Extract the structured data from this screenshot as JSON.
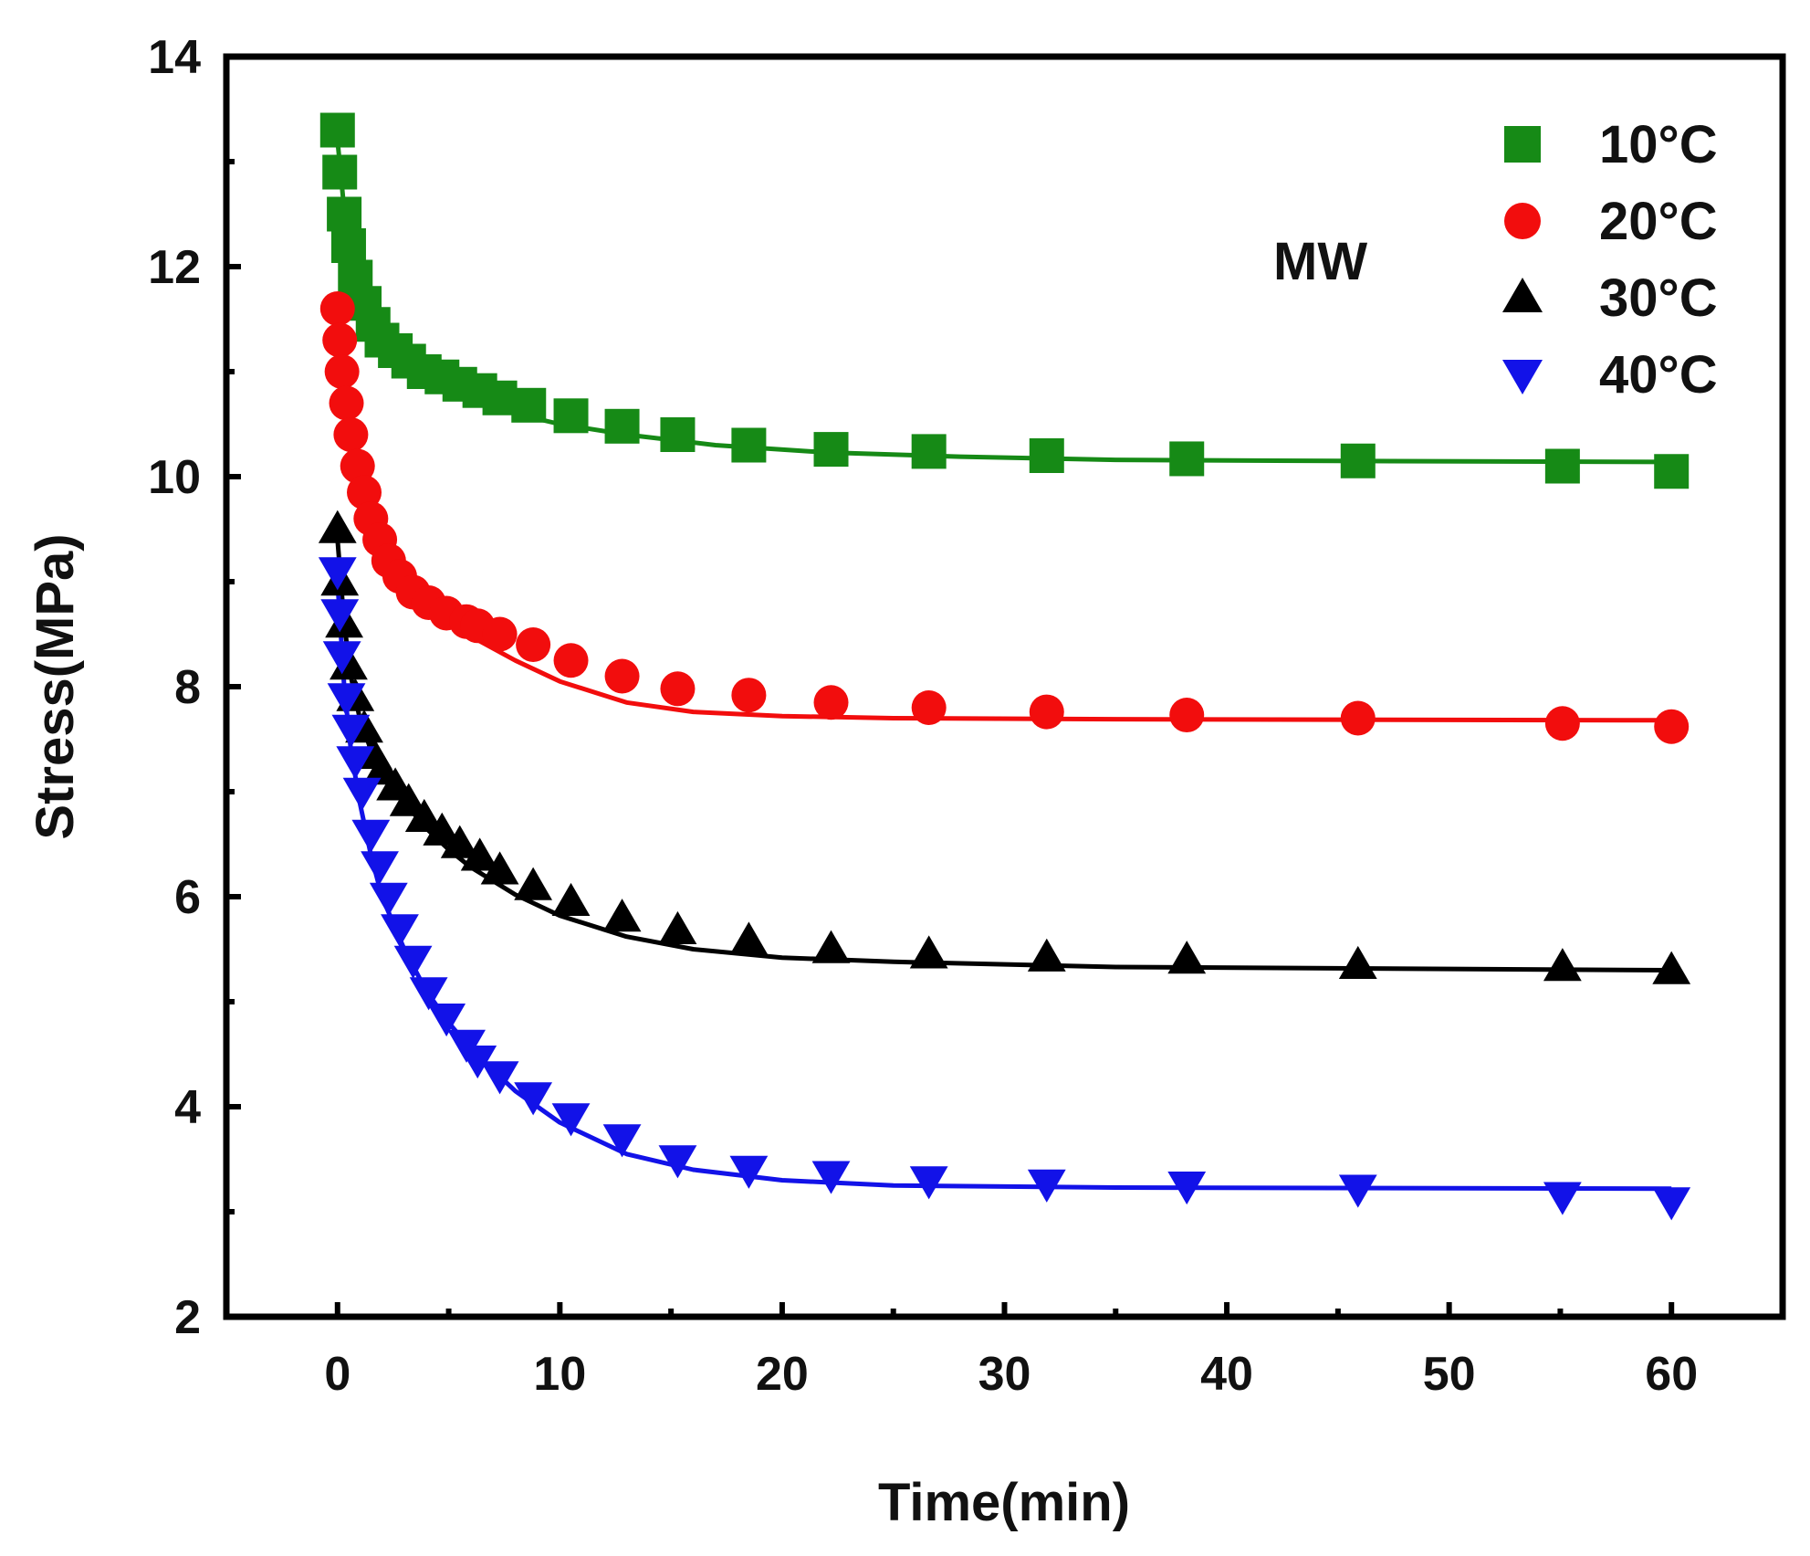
{
  "chart_data": {
    "type": "scatter",
    "title": "",
    "xlabel": "Time(min)",
    "ylabel": "Stress(MPa)",
    "xlim": [
      -5,
      65
    ],
    "ylim": [
      2,
      14
    ],
    "xticks": [
      0,
      10,
      20,
      30,
      40,
      50,
      60
    ],
    "yticks": [
      2,
      4,
      6,
      8,
      10,
      12,
      14
    ],
    "grid": false,
    "legend_position": "top-right",
    "annotation": "MW",
    "series": [
      {
        "name": "10°C",
        "marker": "square",
        "color": "#168a16",
        "points": [
          [
            0,
            13.3
          ],
          [
            0.1,
            12.9
          ],
          [
            0.3,
            12.5
          ],
          [
            0.5,
            12.2
          ],
          [
            0.8,
            11.9
          ],
          [
            1.2,
            11.65
          ],
          [
            1.6,
            11.45
          ],
          [
            2.0,
            11.3
          ],
          [
            2.6,
            11.2
          ],
          [
            3.2,
            11.1
          ],
          [
            3.9,
            11.0
          ],
          [
            4.7,
            10.95
          ],
          [
            5.5,
            10.88
          ],
          [
            6.4,
            10.82
          ],
          [
            7.3,
            10.75
          ],
          [
            8.6,
            10.68
          ],
          [
            10.5,
            10.58
          ],
          [
            12.8,
            10.48
          ],
          [
            15.3,
            10.4
          ],
          [
            18.5,
            10.3
          ],
          [
            22.2,
            10.26
          ],
          [
            26.6,
            10.24
          ],
          [
            31.9,
            10.2
          ],
          [
            38.2,
            10.17
          ],
          [
            45.9,
            10.15
          ],
          [
            55.1,
            10.1
          ],
          [
            60,
            10.05
          ]
        ],
        "fit": [
          [
            0,
            13.2
          ],
          [
            0.5,
            12.1
          ],
          [
            1,
            11.6
          ],
          [
            2,
            11.2
          ],
          [
            3,
            11.0
          ],
          [
            4,
            10.88
          ],
          [
            6,
            10.72
          ],
          [
            8,
            10.6
          ],
          [
            10,
            10.5
          ],
          [
            13,
            10.4
          ],
          [
            17,
            10.3
          ],
          [
            22,
            10.23
          ],
          [
            28,
            10.19
          ],
          [
            35,
            10.16
          ],
          [
            45,
            10.15
          ],
          [
            60,
            10.14
          ]
        ]
      },
      {
        "name": "20°C",
        "marker": "circle",
        "color": "#f20d0d",
        "points": [
          [
            0,
            11.6
          ],
          [
            0.1,
            11.3
          ],
          [
            0.2,
            11.0
          ],
          [
            0.4,
            10.7
          ],
          [
            0.6,
            10.4
          ],
          [
            0.9,
            10.1
          ],
          [
            1.2,
            9.85
          ],
          [
            1.5,
            9.6
          ],
          [
            1.9,
            9.4
          ],
          [
            2.3,
            9.2
          ],
          [
            2.8,
            9.05
          ],
          [
            3.4,
            8.9
          ],
          [
            4.1,
            8.8
          ],
          [
            4.9,
            8.7
          ],
          [
            5.8,
            8.62
          ],
          [
            6.3,
            8.58
          ],
          [
            7.3,
            8.5
          ],
          [
            8.8,
            8.4
          ],
          [
            10.5,
            8.25
          ],
          [
            12.8,
            8.1
          ],
          [
            15.3,
            7.98
          ],
          [
            18.5,
            7.92
          ],
          [
            22.2,
            7.85
          ],
          [
            26.6,
            7.8
          ],
          [
            31.9,
            7.76
          ],
          [
            38.2,
            7.73
          ],
          [
            45.9,
            7.7
          ],
          [
            55.1,
            7.65
          ],
          [
            60,
            7.62
          ]
        ],
        "fit": [
          [
            0,
            11.6
          ],
          [
            0.2,
            10.9
          ],
          [
            0.5,
            10.3
          ],
          [
            1,
            9.7
          ],
          [
            1.5,
            9.4
          ],
          [
            2,
            9.2
          ],
          [
            3,
            8.95
          ],
          [
            4,
            8.75
          ],
          [
            5,
            8.6
          ],
          [
            6,
            8.48
          ],
          [
            8,
            8.25
          ],
          [
            10,
            8.05
          ],
          [
            13,
            7.85
          ],
          [
            16,
            7.76
          ],
          [
            20,
            7.72
          ],
          [
            25,
            7.7
          ],
          [
            35,
            7.69
          ],
          [
            60,
            7.68
          ]
        ]
      },
      {
        "name": "30°C",
        "marker": "triangle-up",
        "color": "#000000",
        "points": [
          [
            0,
            9.5
          ],
          [
            0.1,
            9.0
          ],
          [
            0.3,
            8.6
          ],
          [
            0.5,
            8.2
          ],
          [
            0.8,
            7.9
          ],
          [
            1.2,
            7.6
          ],
          [
            1.6,
            7.35
          ],
          [
            2.0,
            7.2
          ],
          [
            2.6,
            7.05
          ],
          [
            3.2,
            6.9
          ],
          [
            3.9,
            6.75
          ],
          [
            4.7,
            6.62
          ],
          [
            5.5,
            6.5
          ],
          [
            6.4,
            6.38
          ],
          [
            7.3,
            6.25
          ],
          [
            8.8,
            6.1
          ],
          [
            10.5,
            5.95
          ],
          [
            12.8,
            5.8
          ],
          [
            15.3,
            5.68
          ],
          [
            18.5,
            5.58
          ],
          [
            22.2,
            5.5
          ],
          [
            26.6,
            5.45
          ],
          [
            31.9,
            5.42
          ],
          [
            38.2,
            5.4
          ],
          [
            45.9,
            5.35
          ],
          [
            55.1,
            5.33
          ],
          [
            60,
            5.3
          ]
        ],
        "fit": [
          [
            0,
            9.4
          ],
          [
            0.3,
            8.6
          ],
          [
            0.6,
            8.1
          ],
          [
            1,
            7.7
          ],
          [
            1.5,
            7.4
          ],
          [
            2,
            7.2
          ],
          [
            3,
            6.9
          ],
          [
            4,
            6.65
          ],
          [
            5,
            6.45
          ],
          [
            6,
            6.28
          ],
          [
            8,
            6.02
          ],
          [
            10,
            5.82
          ],
          [
            13,
            5.62
          ],
          [
            16,
            5.5
          ],
          [
            20,
            5.42
          ],
          [
            25,
            5.38
          ],
          [
            35,
            5.33
          ],
          [
            60,
            5.3
          ]
        ]
      },
      {
        "name": "40°C",
        "marker": "triangle-down",
        "color": "#1212e8",
        "points": [
          [
            0,
            9.1
          ],
          [
            0.1,
            8.7
          ],
          [
            0.2,
            8.3
          ],
          [
            0.4,
            7.9
          ],
          [
            0.6,
            7.6
          ],
          [
            0.8,
            7.3
          ],
          [
            1.1,
            7.0
          ],
          [
            1.5,
            6.6
          ],
          [
            1.9,
            6.3
          ],
          [
            2.3,
            6.0
          ],
          [
            2.8,
            5.7
          ],
          [
            3.4,
            5.4
          ],
          [
            4.1,
            5.1
          ],
          [
            4.9,
            4.85
          ],
          [
            5.8,
            4.6
          ],
          [
            6.3,
            4.45
          ],
          [
            7.3,
            4.3
          ],
          [
            8.8,
            4.1
          ],
          [
            10.5,
            3.9
          ],
          [
            12.8,
            3.7
          ],
          [
            15.3,
            3.5
          ],
          [
            18.5,
            3.4
          ],
          [
            22.2,
            3.35
          ],
          [
            26.6,
            3.3
          ],
          [
            31.9,
            3.27
          ],
          [
            38.2,
            3.25
          ],
          [
            45.9,
            3.22
          ],
          [
            55.1,
            3.15
          ],
          [
            60,
            3.1
          ]
        ],
        "fit": [
          [
            0,
            9.0
          ],
          [
            0.3,
            8.0
          ],
          [
            0.6,
            7.4
          ],
          [
            1,
            6.9
          ],
          [
            1.5,
            6.4
          ],
          [
            2,
            6.0
          ],
          [
            3,
            5.5
          ],
          [
            4,
            5.1
          ],
          [
            5,
            4.8
          ],
          [
            6,
            4.55
          ],
          [
            8,
            4.15
          ],
          [
            10,
            3.85
          ],
          [
            13,
            3.55
          ],
          [
            16,
            3.4
          ],
          [
            20,
            3.3
          ],
          [
            25,
            3.25
          ],
          [
            35,
            3.23
          ],
          [
            60,
            3.22
          ]
        ]
      }
    ]
  }
}
